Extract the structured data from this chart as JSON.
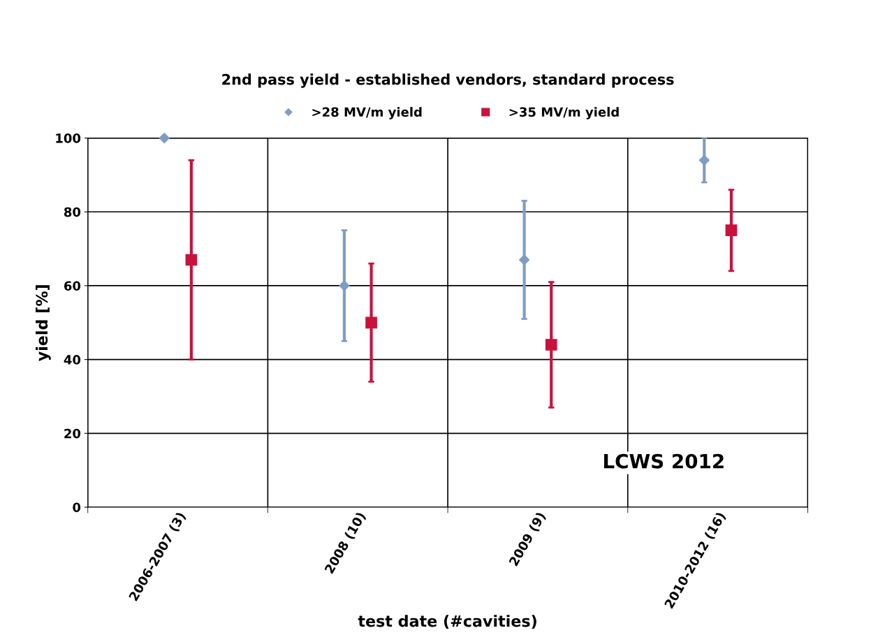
{
  "chart_data": {
    "type": "scatter",
    "title": "2nd pass yield - established vendors, standard process",
    "xlabel": "test date (#cavities)",
    "ylabel": "yield [%]",
    "categories": [
      "2006-2007 (3)",
      "2008 (10)",
      "2009 (9)",
      "2010-2012 (16)"
    ],
    "series": [
      {
        "name": ">28 MV/m yield",
        "color": "#7f9cc4",
        "marker": "diamond",
        "values": [
          100,
          60,
          67,
          94
        ],
        "errors": [
          null,
          [
            45,
            75
          ],
          [
            51,
            83
          ],
          [
            88,
            100
          ]
        ]
      },
      {
        "name": ">35 MV/m yield",
        "color": "#c8123c",
        "marker": "square",
        "values": [
          67,
          50,
          44,
          75
        ],
        "errors": [
          [
            40,
            94
          ],
          [
            34,
            66
          ],
          [
            27,
            61
          ],
          [
            64,
            86
          ]
        ]
      }
    ],
    "ylim": [
      0,
      100
    ],
    "yticks": [
      0,
      20,
      40,
      60,
      80,
      100
    ],
    "grid": true,
    "legend": "top",
    "annotations": [
      "LCWS 2012"
    ]
  }
}
